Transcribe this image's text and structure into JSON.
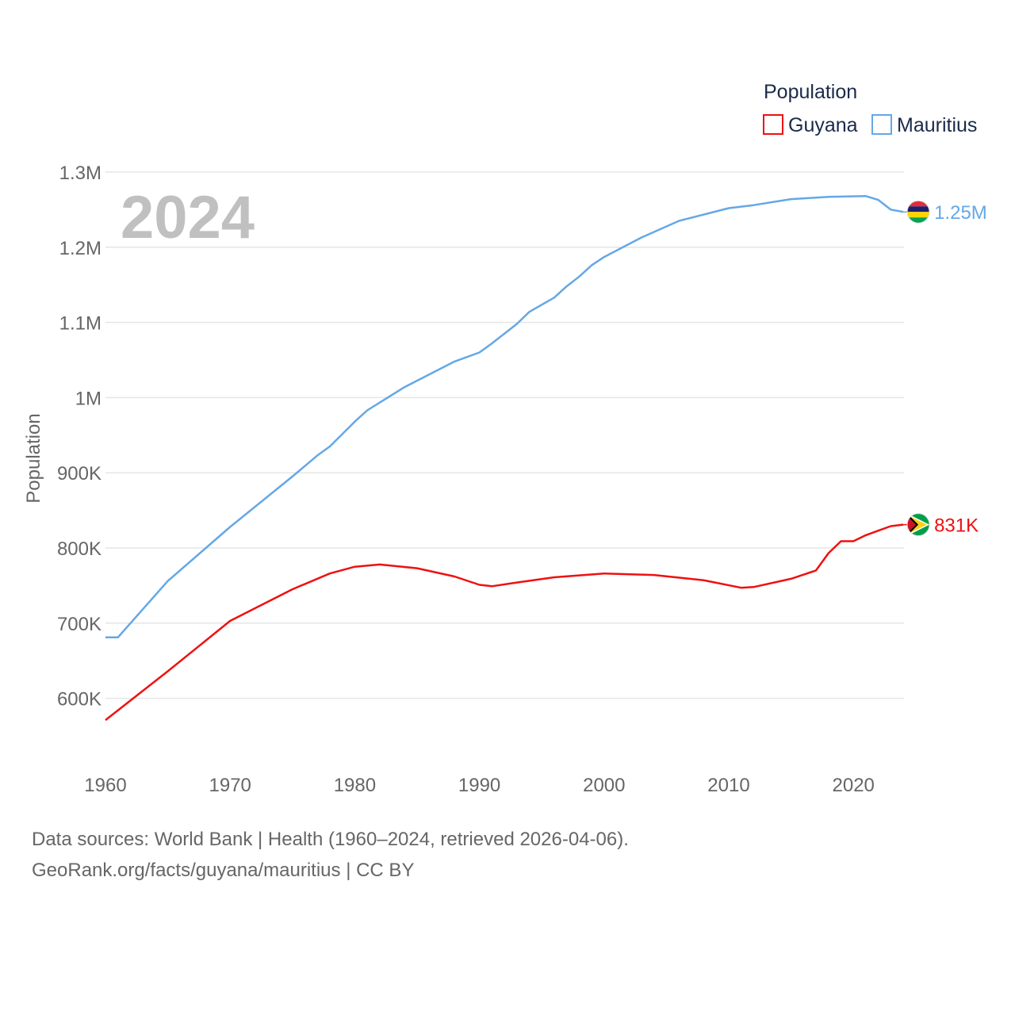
{
  "chart_data": {
    "type": "line",
    "title": "",
    "year_label": "2024",
    "xlabel": "",
    "ylabel": "Population",
    "xlim": [
      1960,
      2024
    ],
    "ylim": [
      550000,
      1300000
    ],
    "x_ticks": [
      1960,
      1970,
      1980,
      1990,
      2000,
      2010,
      2020
    ],
    "x_tick_labels": [
      "1960",
      "1970",
      "1980",
      "1990",
      "2000",
      "2010",
      "2020"
    ],
    "y_ticks": [
      600000,
      700000,
      800000,
      900000,
      1000000,
      1100000,
      1200000,
      1300000
    ],
    "y_tick_labels": [
      "600K",
      "700K",
      "800K",
      "900K",
      "1M",
      "1.1M",
      "1.2M",
      "1.3M"
    ],
    "grid": true,
    "legend": {
      "title": "Population",
      "position": "top-right"
    },
    "series": [
      {
        "name": "Guyana",
        "color": "#ee1111",
        "end_label": "831K",
        "flag_icon": "guyana-flag-icon",
        "points": [
          [
            1960,
            571000
          ],
          [
            1965,
            636000
          ],
          [
            1970,
            703000
          ],
          [
            1975,
            745000
          ],
          [
            1978,
            766000
          ],
          [
            1980,
            775000
          ],
          [
            1982,
            778000
          ],
          [
            1985,
            773000
          ],
          [
            1988,
            762000
          ],
          [
            1990,
            751000
          ],
          [
            1991,
            749000
          ],
          [
            1993,
            754000
          ],
          [
            1996,
            761000
          ],
          [
            2000,
            766000
          ],
          [
            2004,
            764000
          ],
          [
            2008,
            757000
          ],
          [
            2011,
            747000
          ],
          [
            2012,
            748000
          ],
          [
            2015,
            759000
          ],
          [
            2017,
            770000
          ],
          [
            2018,
            793000
          ],
          [
            2019,
            809000
          ],
          [
            2020,
            809000
          ],
          [
            2021,
            817000
          ],
          [
            2022,
            823000
          ],
          [
            2023,
            829000
          ],
          [
            2024,
            831000
          ]
        ]
      },
      {
        "name": "Mauritius",
        "color": "#64a8e6",
        "end_label": "1.25M",
        "flag_icon": "mauritius-flag-icon",
        "points": [
          [
            1960,
            681000
          ],
          [
            1961,
            681000
          ],
          [
            1965,
            756000
          ],
          [
            1970,
            828000
          ],
          [
            1975,
            895000
          ],
          [
            1977,
            923000
          ],
          [
            1978,
            935000
          ],
          [
            1980,
            968000
          ],
          [
            1981,
            983000
          ],
          [
            1984,
            1014000
          ],
          [
            1988,
            1048000
          ],
          [
            1990,
            1060000
          ],
          [
            1991,
            1072000
          ],
          [
            1993,
            1098000
          ],
          [
            1994,
            1114000
          ],
          [
            1996,
            1133000
          ],
          [
            1997,
            1148000
          ],
          [
            1998,
            1161000
          ],
          [
            1999,
            1176000
          ],
          [
            2000,
            1187000
          ],
          [
            2003,
            1213000
          ],
          [
            2006,
            1235000
          ],
          [
            2010,
            1252000
          ],
          [
            2012,
            1256000
          ],
          [
            2015,
            1264000
          ],
          [
            2018,
            1267000
          ],
          [
            2021,
            1268000
          ],
          [
            2022,
            1263000
          ],
          [
            2023,
            1250000
          ],
          [
            2024,
            1247000
          ]
        ]
      }
    ]
  },
  "footer": {
    "sources": "Data sources: World Bank | Health (1960–2024, retrieved 2026-04-06).",
    "credit": "GeoRank.org/facts/guyana/mauritius | CC BY"
  }
}
